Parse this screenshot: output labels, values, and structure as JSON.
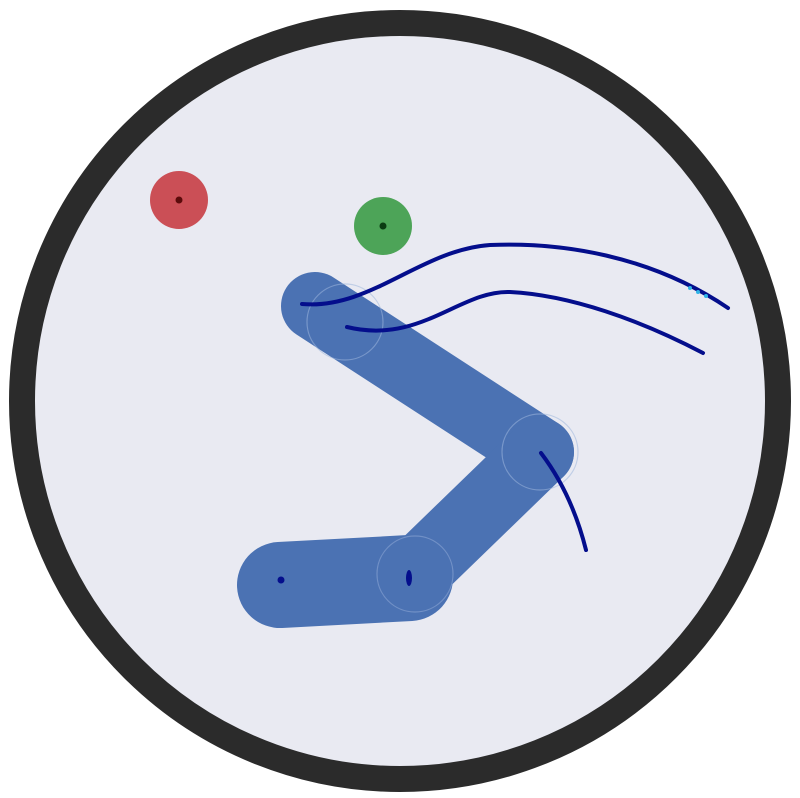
{
  "environment": {
    "arena_border_color": "#2b2b2b",
    "arena_fill_color": "#e9eaf2"
  },
  "markers": [
    {
      "name": "target-marker-red",
      "color": "#c9474d",
      "role": "target"
    },
    {
      "name": "target-marker-green",
      "color": "#44a04f",
      "role": "goal"
    }
  ],
  "robot_arm": {
    "color": "#4b72b3",
    "segment_count": 3,
    "joint_count": 4
  },
  "trajectories": {
    "color": "#040e8c",
    "count": 3
  }
}
